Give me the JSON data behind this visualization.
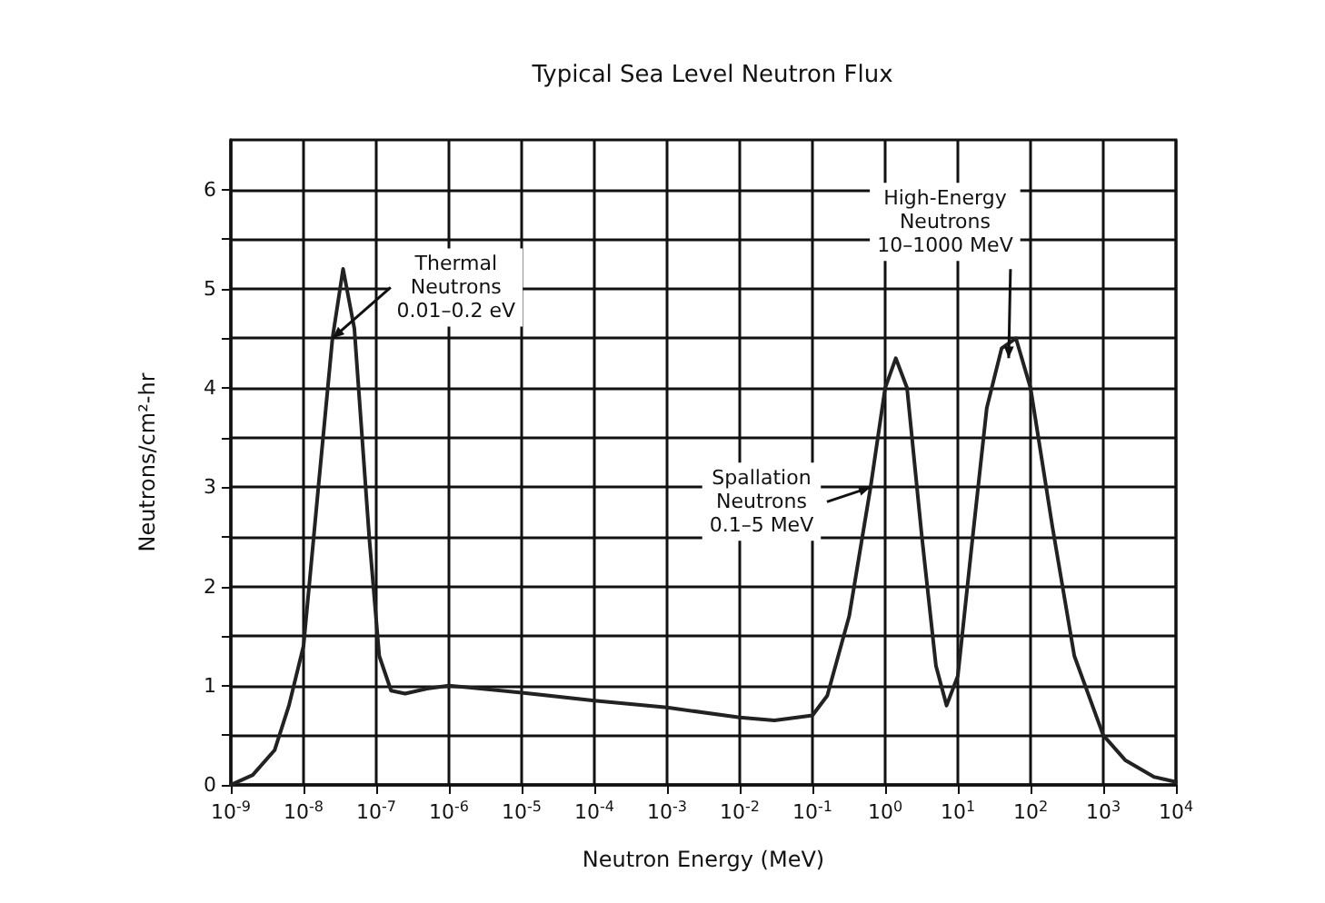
{
  "chart_data": {
    "type": "line",
    "title": "Typical Sea Level Neutron Flux",
    "xlabel": "Neutron Energy (MeV)",
    "ylabel": "Neutrons/cm²-hr",
    "log": "x",
    "grid": true,
    "marker": "none",
    "line_style": "solid",
    "x": [
      1e-09,
      2e-09,
      4e-09,
      6.3e-09,
      1e-08,
      1.6e-08,
      2.5e-08,
      3.5e-08,
      5e-08,
      8e-08,
      1.1e-07,
      1.6e-07,
      2.5e-07,
      5e-07,
      1e-06,
      1e-05,
      0.0001,
      0.001,
      0.01,
      0.03,
      0.1,
      0.16,
      0.32,
      0.63,
      1,
      1.4,
      2,
      3.2,
      5,
      7,
      10,
      16,
      25,
      40,
      63,
      100,
      200,
      400,
      1000,
      2000,
      5000,
      10000
    ],
    "series": [
      {
        "color": "#222222",
        "values": [
          0,
          0.1,
          0.35,
          0.8,
          1.4,
          3.0,
          4.5,
          5.2,
          4.6,
          2.5,
          1.3,
          0.95,
          0.92,
          0.97,
          1.0,
          0.93,
          0.85,
          0.78,
          0.68,
          0.65,
          0.7,
          0.9,
          1.7,
          3.0,
          4.0,
          4.3,
          4.0,
          2.5,
          1.2,
          0.8,
          1.1,
          2.5,
          3.8,
          4.4,
          4.5,
          4.0,
          2.6,
          1.3,
          0.5,
          0.25,
          0.08,
          0.03
        ]
      }
    ],
    "xlim": [
      1e-09,
      10000
    ],
    "xticks": [
      {
        "value": 1e-09,
        "label": "10$^{-9}$"
      },
      {
        "value": 1e-08,
        "label": "10$^{-8}$"
      },
      {
        "value": 1e-07,
        "label": "10$^{-7}$"
      },
      {
        "value": 1e-06,
        "label": "10$^{-6}$"
      },
      {
        "value": 1e-05,
        "label": "10$^{-5}$"
      },
      {
        "value": 0.0001,
        "label": "10$^{-4}$"
      },
      {
        "value": 0.001,
        "label": "10$^{-3}$"
      },
      {
        "value": 0.01,
        "label": "10$^{-2}$"
      },
      {
        "value": 0.1,
        "label": "10$^{-1}$"
      },
      {
        "value": 1,
        "label": "10$^{0}$"
      },
      {
        "value": 10,
        "label": "10$^{1}$"
      },
      {
        "value": 100,
        "label": "10$^{2}$"
      },
      {
        "value": 1000,
        "label": "10$^{3}$"
      },
      {
        "value": 10000,
        "label": "10$^{4}$"
      }
    ],
    "ylim": [
      0,
      6.5
    ],
    "yticks": [
      0,
      {
        "value": 0.5,
        "label": null
      },
      1,
      {
        "value": 1.5,
        "label": null
      },
      2,
      {
        "value": 2.5,
        "label": null
      },
      3,
      {
        "value": 3.5,
        "label": null
      },
      4,
      {
        "value": 4.5,
        "label": null
      },
      5,
      {
        "value": 5.5,
        "label": null
      },
      6
    ],
    "annotations": [
      {
        "text": "Thermal\nNeutrons\n0.01–0.2 eV",
        "x": 2.5e-08,
        "y": 4.5
      },
      {
        "text": "Spallation\nNeutrons\n0.1–5 MeV",
        "x": 0.63,
        "y": 3.0
      },
      {
        "text": "High-Energy\nNeutrons\n10–1000 MeV",
        "x": 50,
        "y": 4.3
      }
    ]
  }
}
